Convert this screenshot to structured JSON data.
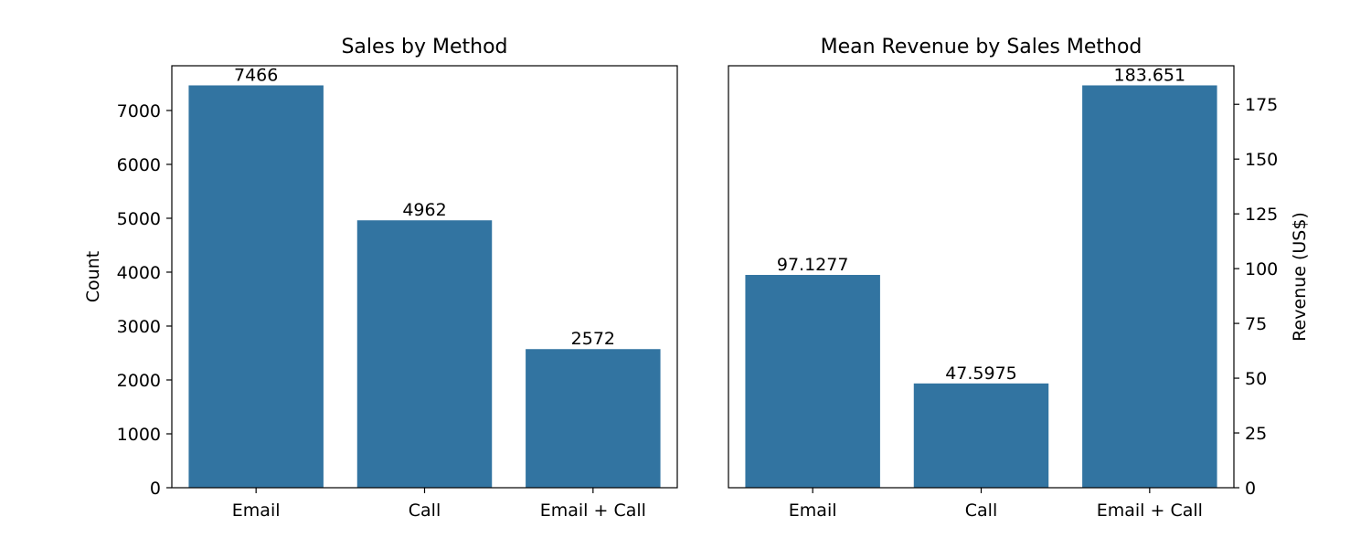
{
  "chart_data": [
    {
      "type": "bar",
      "title": "Sales by Method",
      "xlabel": "",
      "ylabel": "Count",
      "categories": [
        "Email",
        "Call",
        "Email + Call"
      ],
      "values": [
        7466,
        4962,
        2572
      ],
      "bar_labels": [
        "7466",
        "4962",
        "2572"
      ],
      "ylim": [
        0,
        7830
      ],
      "yticks": [
        0,
        1000,
        2000,
        3000,
        4000,
        5000,
        6000,
        7000
      ],
      "ytick_labels": [
        "0",
        "1000",
        "2000",
        "3000",
        "4000",
        "5000",
        "6000",
        "7000"
      ],
      "y_axis_side": "left",
      "grid": false,
      "bar_color": "#3274a1"
    },
    {
      "type": "bar",
      "title": "Mean Revenue by Sales Method",
      "xlabel": "",
      "ylabel": "Revenue (US$)",
      "categories": [
        "Email",
        "Call",
        "Email + Call"
      ],
      "values": [
        97.1277,
        47.5975,
        183.651
      ],
      "bar_labels": [
        "97.1277",
        "47.5975",
        "183.651"
      ],
      "ylim": [
        0,
        192.6
      ],
      "yticks": [
        0,
        25,
        50,
        75,
        100,
        125,
        150,
        175
      ],
      "ytick_labels": [
        "0",
        "25",
        "50",
        "75",
        "100",
        "125",
        "150",
        "175"
      ],
      "y_axis_side": "right",
      "grid": false,
      "bar_color": "#3274a1"
    }
  ]
}
